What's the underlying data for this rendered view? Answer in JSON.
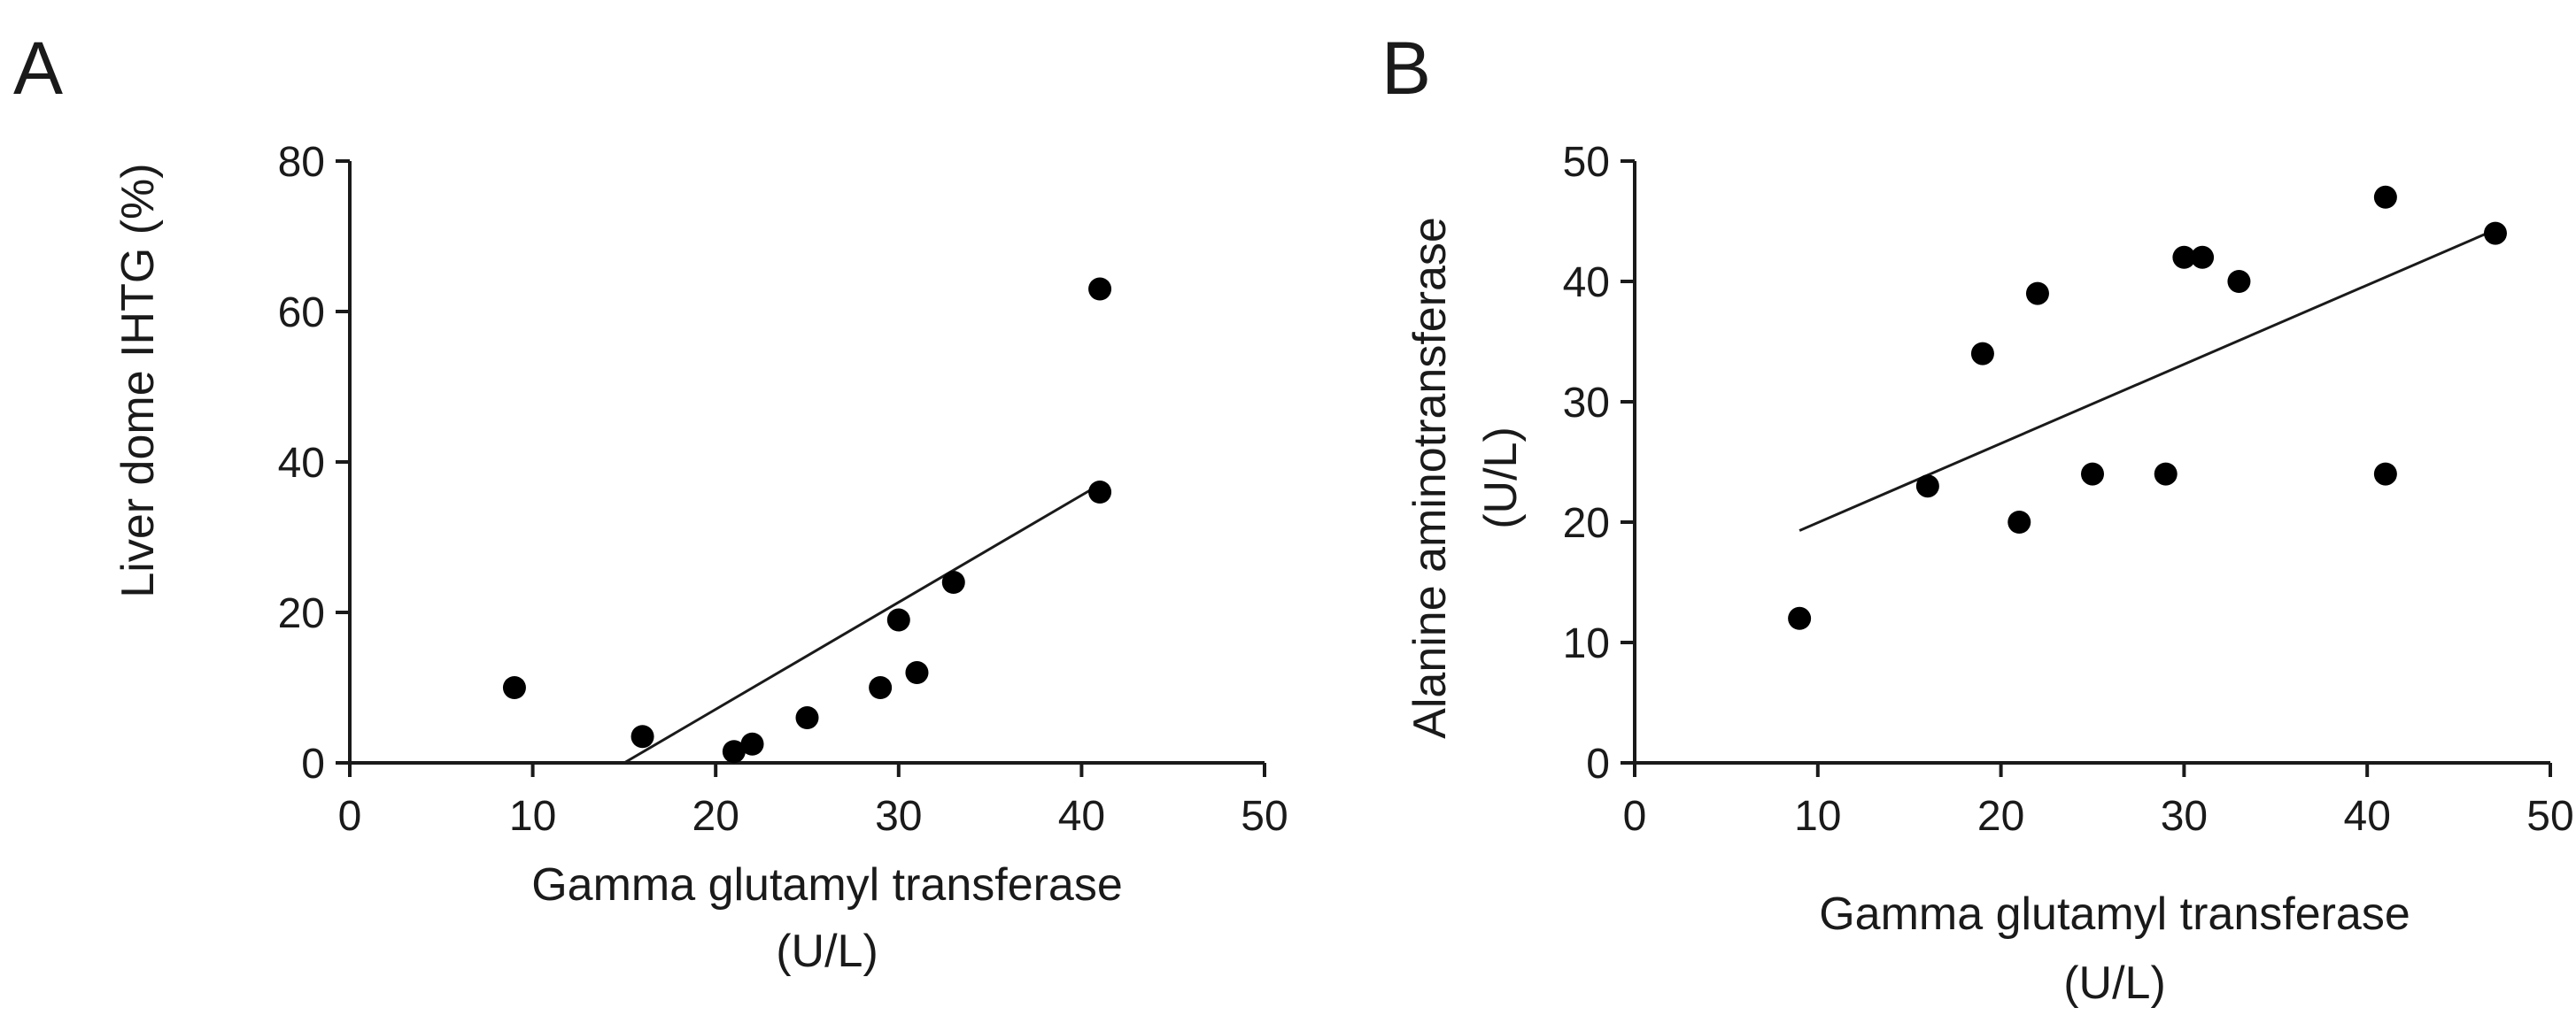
{
  "chart_data": [
    {
      "panel": "A",
      "type": "scatter",
      "xlabel": [
        "Gamma glutamyl transferase",
        "(U/L)"
      ],
      "ylabel": "Liver dome IHTG (%)",
      "xlim": [
        0,
        50
      ],
      "ylim": [
        0,
        80
      ],
      "xticks": [
        0,
        10,
        20,
        30,
        40,
        50
      ],
      "yticks": [
        0,
        20,
        40,
        60,
        80
      ],
      "points": [
        {
          "x": 9,
          "y": 10
        },
        {
          "x": 16,
          "y": 3.5
        },
        {
          "x": 21,
          "y": 1.5
        },
        {
          "x": 22,
          "y": 2.5
        },
        {
          "x": 25,
          "y": 6
        },
        {
          "x": 29,
          "y": 10
        },
        {
          "x": 30,
          "y": 19
        },
        {
          "x": 31,
          "y": 12
        },
        {
          "x": 33,
          "y": 24
        },
        {
          "x": 41,
          "y": 36
        },
        {
          "x": 41,
          "y": 63
        }
      ],
      "fit_line": {
        "x1": 15,
        "y1": 0,
        "x2": 41,
        "y2": 37
      }
    },
    {
      "panel": "B",
      "type": "scatter",
      "xlabel": [
        "Gamma glutamyl transferase",
        "(U/L)"
      ],
      "ylabel": [
        "Alanine aminotransferase",
        "(U/L)"
      ],
      "xlim": [
        0,
        50
      ],
      "ylim": [
        0,
        50
      ],
      "xticks": [
        0,
        10,
        20,
        30,
        40,
        50
      ],
      "yticks": [
        0,
        10,
        20,
        30,
        40,
        50
      ],
      "points": [
        {
          "x": 9,
          "y": 12
        },
        {
          "x": 16,
          "y": 23
        },
        {
          "x": 19,
          "y": 34
        },
        {
          "x": 21,
          "y": 20
        },
        {
          "x": 22,
          "y": 39
        },
        {
          "x": 25,
          "y": 24
        },
        {
          "x": 29,
          "y": 24
        },
        {
          "x": 30,
          "y": 42
        },
        {
          "x": 31,
          "y": 42
        },
        {
          "x": 33,
          "y": 40
        },
        {
          "x": 41,
          "y": 47
        },
        {
          "x": 41,
          "y": 24
        },
        {
          "x": 47,
          "y": 44
        }
      ],
      "fit_line": {
        "x1": 9,
        "y1": 19.3,
        "x2": 47,
        "y2": 44.3
      }
    }
  ]
}
